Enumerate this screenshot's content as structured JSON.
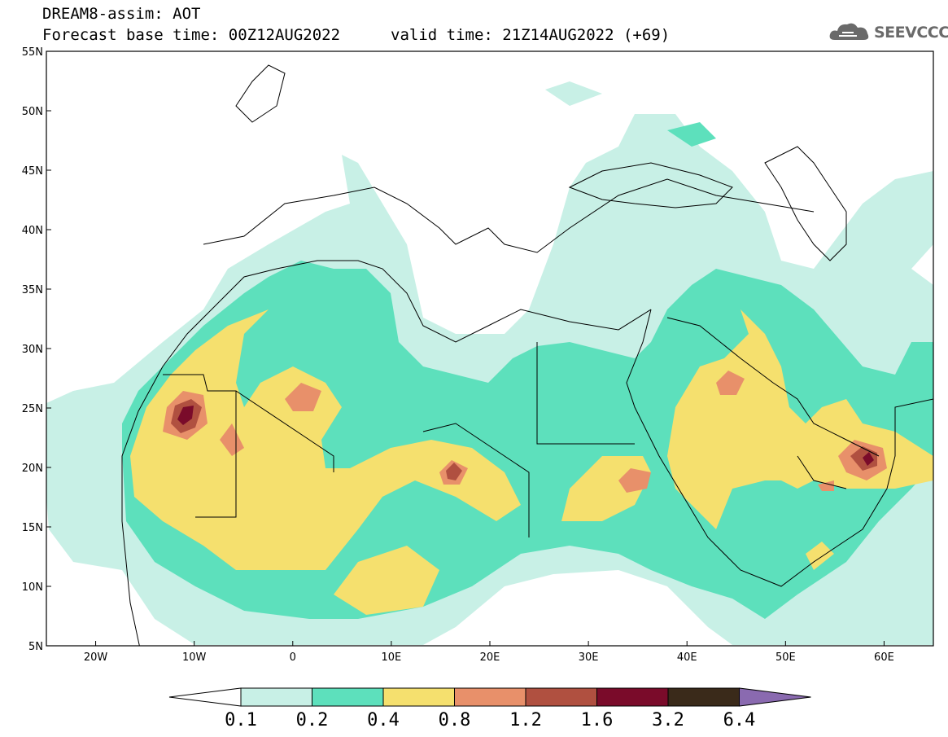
{
  "header": {
    "title_line1": "DREAM8-assim: AOT",
    "title_line2": "Forecast base time: 00Z12AUG2022",
    "valid_time": "valid time: 21Z14AUG2022 (+69)"
  },
  "logo": {
    "icon": "cloud-icon",
    "text": "SEEVCCC"
  },
  "map": {
    "lon_ticks": [
      "20W",
      "10W",
      "0",
      "10E",
      "20E",
      "30E",
      "40E",
      "50E",
      "60E"
    ],
    "lat_ticks": [
      "55N",
      "50N",
      "45N",
      "40N",
      "35N",
      "30N",
      "25N",
      "20N",
      "15N",
      "10N",
      "5N"
    ],
    "lon_range": [
      -25,
      65
    ],
    "lat_range": [
      5,
      55
    ]
  },
  "colorbar": {
    "labels": [
      "0.1",
      "0.2",
      "0.4",
      "0.8",
      "1.2",
      "1.6",
      "3.2",
      "6.4"
    ],
    "colors": [
      "#ffffff",
      "#c8f0e6",
      "#5de0bc",
      "#f5e06e",
      "#e8906a",
      "#b05040",
      "#7a0b2a",
      "#3a2a1a",
      "#8a6ab0"
    ]
  }
}
